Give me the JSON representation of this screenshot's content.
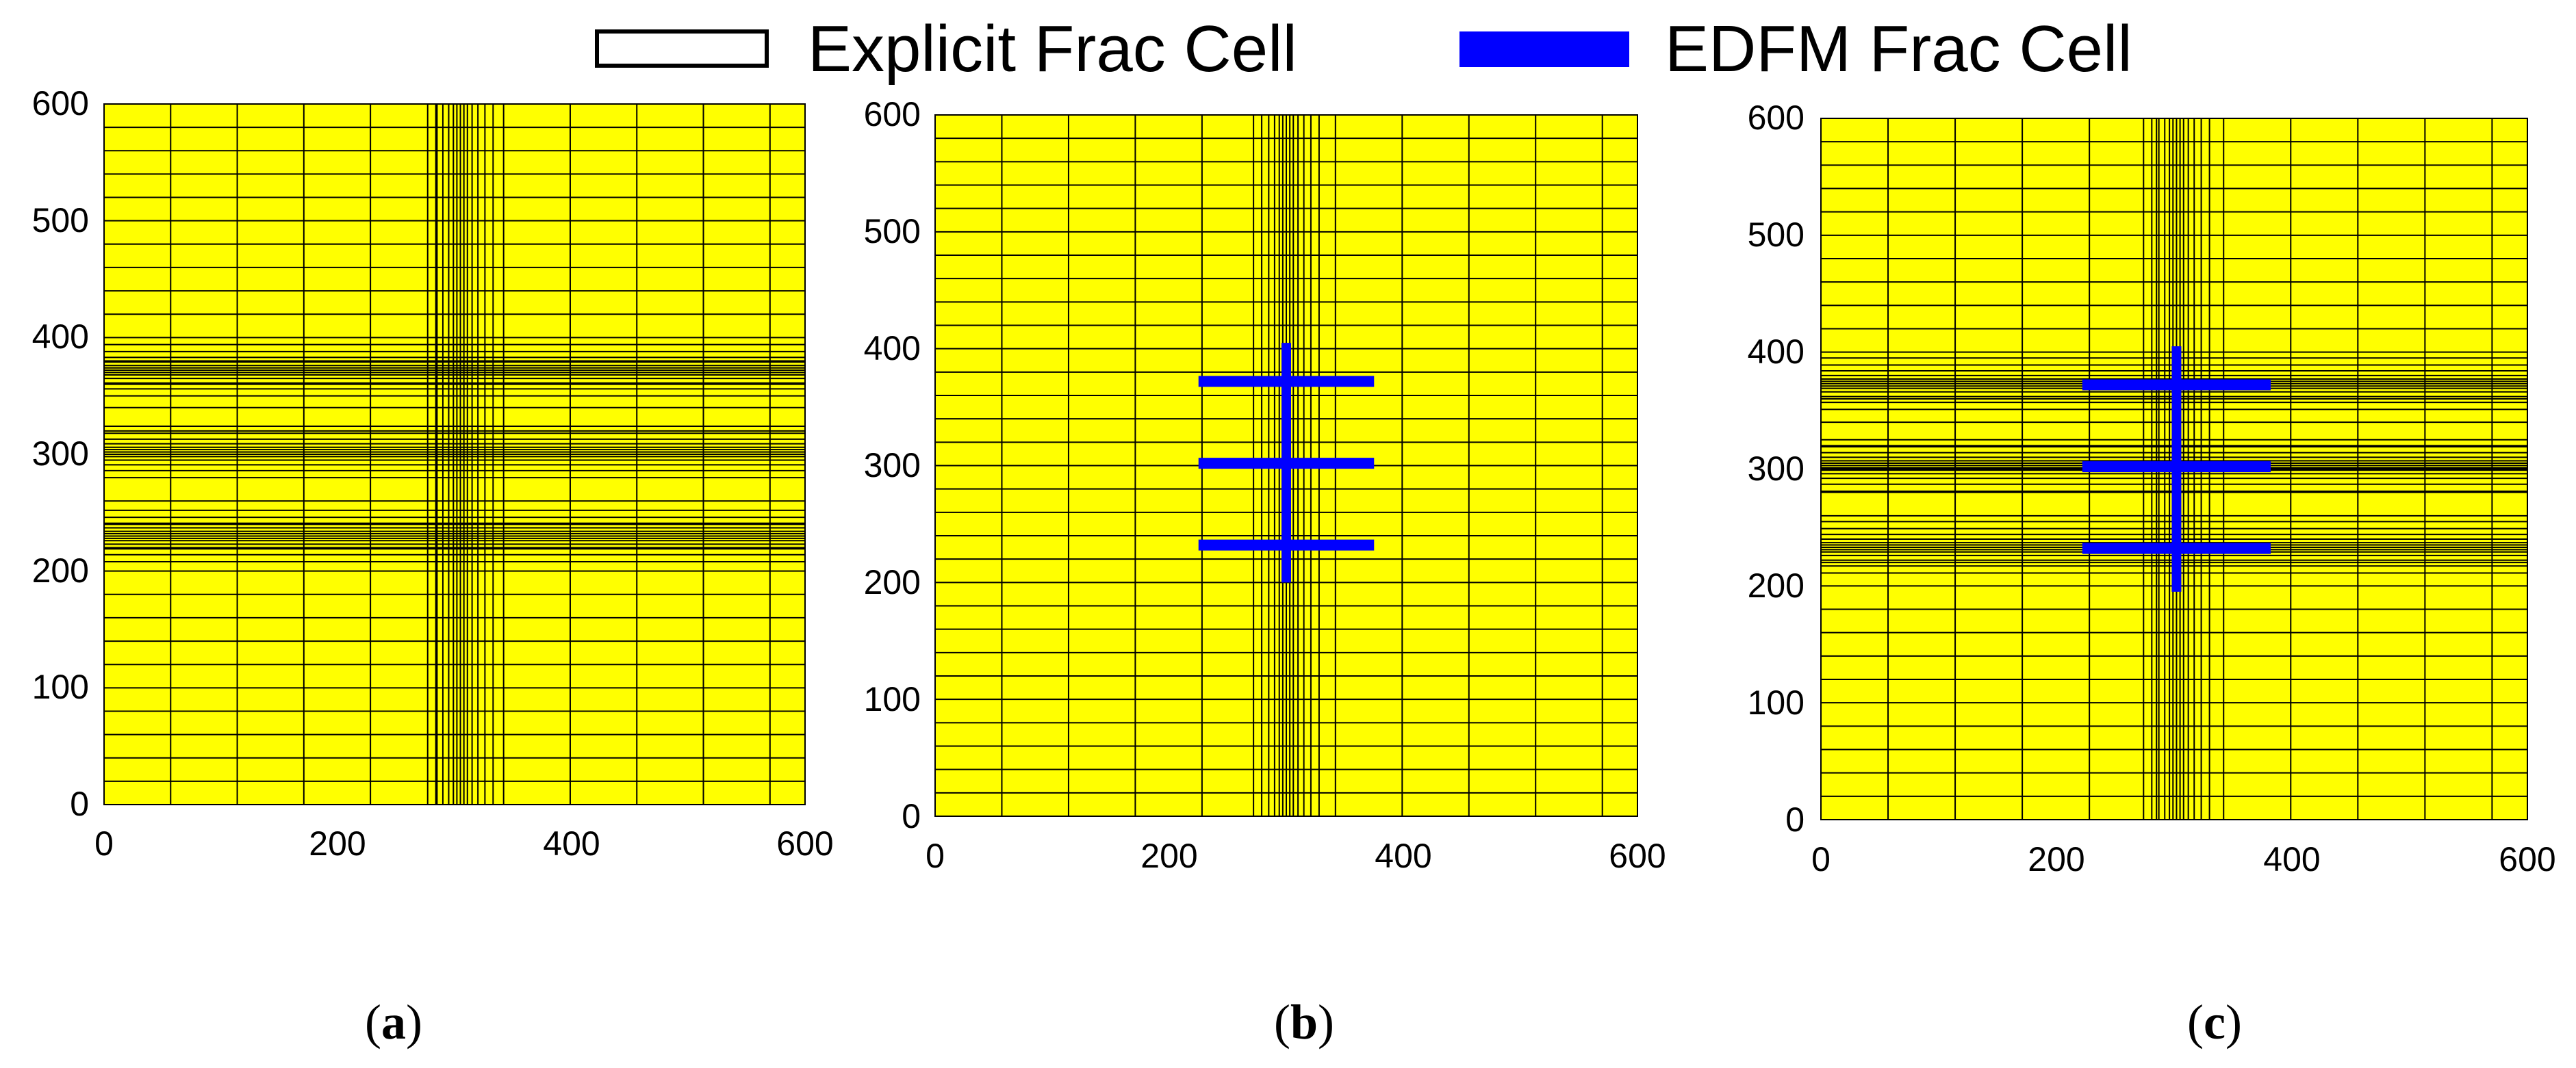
{
  "legend": {
    "explicit_label": "Explicit Frac Cell",
    "edfm_label": "EDFM Frac Cell"
  },
  "colors": {
    "matrix": "#ffff00",
    "grid_line": "#000000",
    "edfm": "#0000ff"
  },
  "panels": [
    {
      "id": "a",
      "caption_letter": "a",
      "x_ticks": [
        "0",
        "200",
        "400",
        "600"
      ],
      "y_ticks": [
        "0",
        "100",
        "200",
        "300",
        "400",
        "500",
        "600"
      ],
      "refined_x": [
        305
      ],
      "refined_y": [
        230,
        302,
        372
      ],
      "edfm": []
    },
    {
      "id": "b",
      "caption_letter": "b",
      "x_ticks": [
        "0",
        "200",
        "400",
        "600"
      ],
      "y_ticks": [
        "0",
        "100",
        "200",
        "300",
        "400",
        "500",
        "600"
      ],
      "refined_x": [
        300
      ],
      "refined_y": [],
      "edfm": [
        {
          "x1": 300,
          "y1": 200,
          "x2": 300,
          "y2": 405
        },
        {
          "x1": 225,
          "y1": 372,
          "x2": 375,
          "y2": 372
        },
        {
          "x1": 225,
          "y1": 302,
          "x2": 375,
          "y2": 302
        },
        {
          "x1": 225,
          "y1": 232,
          "x2": 375,
          "y2": 232
        }
      ]
    },
    {
      "id": "c",
      "caption_letter": "c",
      "x_ticks": [
        "0",
        "200",
        "400",
        "600"
      ],
      "y_ticks": [
        "0",
        "100",
        "200",
        "300",
        "400",
        "500",
        "600"
      ],
      "refined_x": [
        302
      ],
      "refined_y": [
        233,
        303,
        373
      ],
      "edfm": [
        {
          "x1": 302,
          "y1": 195,
          "x2": 302,
          "y2": 405
        },
        {
          "x1": 222,
          "y1": 372,
          "x2": 382,
          "y2": 372
        },
        {
          "x1": 222,
          "y1": 302,
          "x2": 382,
          "y2": 302
        },
        {
          "x1": 222,
          "y1": 232,
          "x2": 382,
          "y2": 232
        }
      ]
    }
  ]
}
